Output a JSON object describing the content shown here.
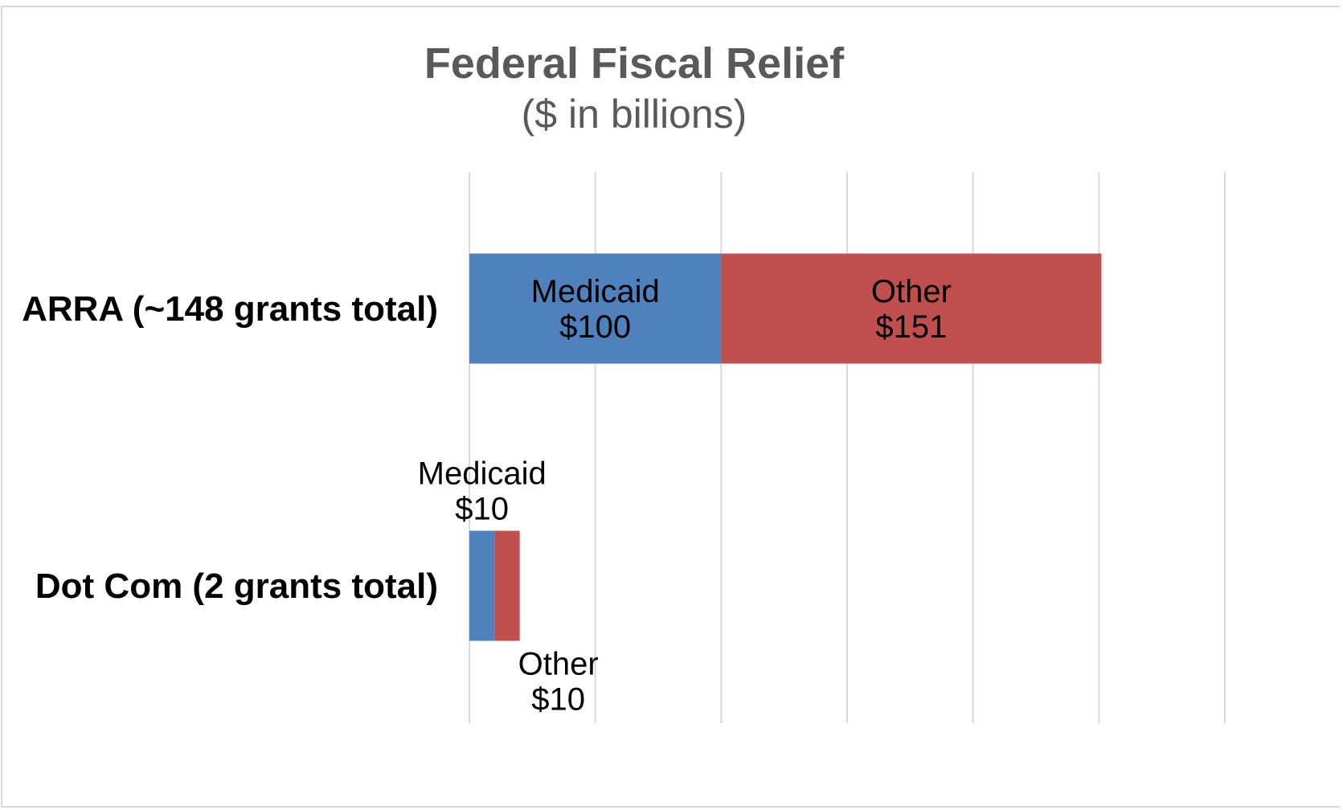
{
  "chart_data": {
    "type": "bar",
    "orientation": "horizontal",
    "stacked": true,
    "title": "Federal Fiscal Relief",
    "subtitle": "($ in billions)",
    "categories": [
      "ARRA (~148 grants total)",
      "Dot Com (2 grants total)"
    ],
    "series": [
      {
        "name": "Medicaid",
        "color": "#4f81bd",
        "values": [
          100,
          10
        ],
        "labels": [
          "Medicaid\n$100",
          "Medicaid\n$10"
        ]
      },
      {
        "name": "Other",
        "color": "#c0504d",
        "values": [
          151,
          10
        ],
        "labels": [
          "Other\n$151",
          "Other\n$10"
        ]
      }
    ],
    "xlim": [
      0,
      300
    ],
    "x_gridlines": [
      0,
      50,
      100,
      150,
      200,
      250,
      300
    ],
    "grid": true,
    "x_tick_labels_shown": false,
    "legend": "none"
  }
}
